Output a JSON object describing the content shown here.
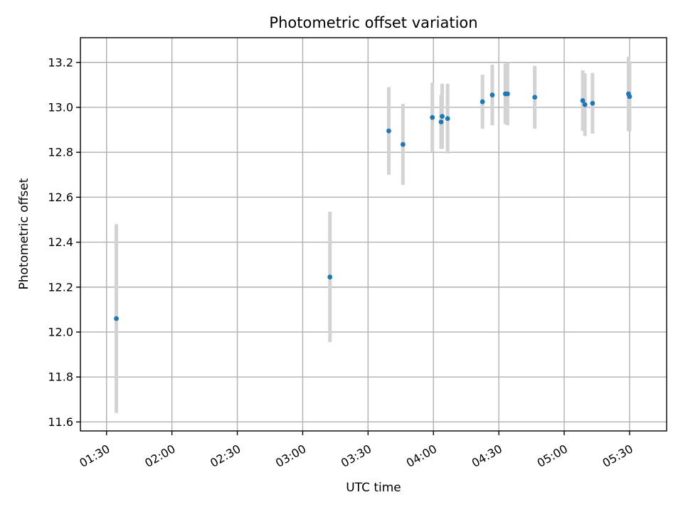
{
  "chart_data": {
    "type": "scatter",
    "title": "Photometric offset variation",
    "xlabel": "UTC time",
    "ylabel": "Photometric offset",
    "x_axis_type": "time",
    "xlim": [
      "01:18",
      "05:47"
    ],
    "ylim": [
      11.56,
      13.31
    ],
    "x_ticks": [
      "01:30",
      "02:00",
      "02:30",
      "03:00",
      "03:30",
      "04:00",
      "04:30",
      "05:00",
      "05:30"
    ],
    "y_ticks": [
      "11.6",
      "11.8",
      "12.0",
      "12.2",
      "12.4",
      "12.6",
      "12.8",
      "13.0",
      "13.2"
    ],
    "grid": true,
    "point_color": "#1f77b4",
    "errorbar_color": "#d3d3d3",
    "points": [
      {
        "t": "01:34:30",
        "y": 12.06,
        "err": 0.42
      },
      {
        "t": "03:12:30",
        "y": 12.245,
        "err": 0.29
      },
      {
        "t": "03:39:30",
        "y": 12.895,
        "err": 0.195
      },
      {
        "t": "03:46:00",
        "y": 12.835,
        "err": 0.18
      },
      {
        "t": "03:59:30",
        "y": 12.955,
        "err": 0.155
      },
      {
        "t": "04:03:30",
        "y": 12.935,
        "err": 0.12
      },
      {
        "t": "04:04:00",
        "y": 12.96,
        "err": 0.145
      },
      {
        "t": "04:06:30",
        "y": 12.95,
        "err": 0.155
      },
      {
        "t": "04:22:30",
        "y": 13.025,
        "err": 0.12
      },
      {
        "t": "04:27:00",
        "y": 13.055,
        "err": 0.135
      },
      {
        "t": "04:33:00",
        "y": 13.06,
        "err": 0.135
      },
      {
        "t": "04:34:00",
        "y": 13.06,
        "err": 0.14
      },
      {
        "t": "04:46:30",
        "y": 13.045,
        "err": 0.14
      },
      {
        "t": "05:08:30",
        "y": 13.03,
        "err": 0.135
      },
      {
        "t": "05:09:30",
        "y": 13.012,
        "err": 0.14
      },
      {
        "t": "05:13:00",
        "y": 13.018,
        "err": 0.135
      },
      {
        "t": "05:29:30",
        "y": 13.06,
        "err": 0.165
      },
      {
        "t": "05:30:00",
        "y": 13.048,
        "err": 0.155
      }
    ]
  }
}
